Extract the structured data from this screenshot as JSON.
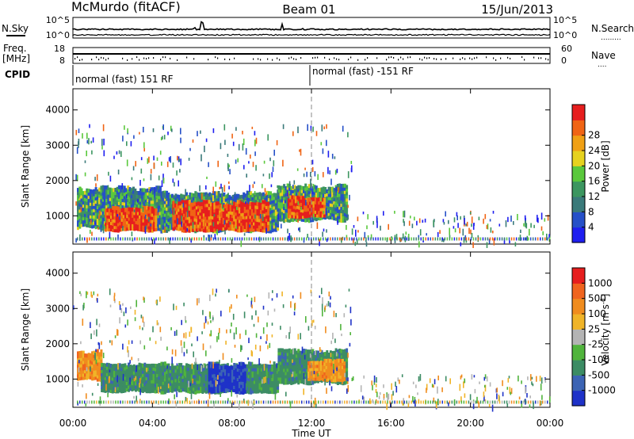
{
  "header": {
    "station": "McMurdo (fitACF)",
    "beam": "Beam 01",
    "date": "15/Jun/2013"
  },
  "meta_panel": {
    "left_labels": {
      "nsky": "N.Sky",
      "freq_line1": "Freq.",
      "freq_line2": "[MHz]",
      "cpid": "CPID"
    },
    "right_labels": {
      "nsearch": "N.Search",
      "nave": "Nave",
      "nsearch_dots": ".........",
      "nave_dots": "...."
    },
    "sky_axis": {
      "top": "10^5",
      "bottom": "10^0"
    },
    "search_axis": {
      "top": "10^5",
      "bottom": "10^0"
    },
    "freq_axis": {
      "top": "18",
      "bottom": "8"
    },
    "nave_axis": {
      "top": "60",
      "bottom": "0"
    },
    "cpid_segments": [
      {
        "label": "normal (fast) 151 RF",
        "start_hour": 0,
        "end_hour": 12
      },
      {
        "label": "normal (fast) -151 RF",
        "start_hour": 12,
        "end_hour": 24
      }
    ]
  },
  "time_axis": {
    "label": "Time UT",
    "ticks": [
      "00:00",
      "04:00",
      "08:00",
      "12:00",
      "16:00",
      "20:00",
      "00:00"
    ]
  },
  "chart_data": [
    {
      "type": "heatmap",
      "title": "",
      "xlabel": "Time UT",
      "ylabel": "Slant Range [km]",
      "xlim_hours": [
        0,
        24
      ],
      "ylim_km": [
        200,
        4600
      ],
      "yticks": [
        "1000",
        "2000",
        "3000",
        "4000"
      ],
      "colorbar": {
        "label": "Power [dB]",
        "ticks": [
          "4",
          "8",
          "12",
          "16",
          "20",
          "24",
          "28"
        ],
        "colors": [
          "#1e1ef0",
          "#2650c8",
          "#3a7a7a",
          "#3c9660",
          "#5ac83c",
          "#e6d21e",
          "#f0a014",
          "#f06414",
          "#e61e1e"
        ]
      },
      "regions": [
        {
          "t0": 0.2,
          "t1": 4.4,
          "r_lo": 560,
          "r_hi": 1780,
          "level": "mid"
        },
        {
          "t0": 1.6,
          "t1": 4.2,
          "r_lo": 520,
          "r_hi": 1200,
          "level": "high"
        },
        {
          "t0": 4.4,
          "t1": 10.3,
          "r_lo": 500,
          "r_hi": 1620,
          "level": "mid"
        },
        {
          "t0": 5.0,
          "t1": 9.8,
          "r_lo": 520,
          "r_hi": 1350,
          "level": "high"
        },
        {
          "t0": 10.3,
          "t1": 13.8,
          "r_lo": 800,
          "r_hi": 1820,
          "level": "mid"
        },
        {
          "t0": 10.8,
          "t1": 12.6,
          "r_lo": 900,
          "r_hi": 1500,
          "level": "high"
        }
      ]
    },
    {
      "type": "heatmap",
      "title": "",
      "xlabel": "Time UT",
      "ylabel": "Slant Range [km]",
      "xlim_hours": [
        0,
        24
      ],
      "ylim_km": [
        200,
        4600
      ],
      "yticks": [
        "1000",
        "2000",
        "3000",
        "4000"
      ],
      "colorbar": {
        "label": "Velocity [m s-1]",
        "ticks": [
          "1000",
          "500",
          "100",
          "25",
          "-25",
          "-100",
          "-500",
          "-1000"
        ],
        "colors": [
          "#1e32c8",
          "#3c64b4",
          "#3c8c64",
          "#50b43c",
          "#b4b4b4",
          "#f0b428",
          "#f08c1e",
          "#f0641e",
          "#e61e1e"
        ]
      },
      "regions": [
        {
          "t0": 0.2,
          "t1": 1.4,
          "r_lo": 900,
          "r_hi": 1760,
          "level": "orange"
        },
        {
          "t0": 1.4,
          "t1": 4.4,
          "r_lo": 580,
          "r_hi": 1400,
          "level": "green"
        },
        {
          "t0": 4.4,
          "t1": 10.3,
          "r_lo": 560,
          "r_hi": 1400,
          "level": "green"
        },
        {
          "t0": 6.8,
          "t1": 8.6,
          "r_lo": 560,
          "r_hi": 1400,
          "level": "blue"
        },
        {
          "t0": 10.3,
          "t1": 13.8,
          "r_lo": 820,
          "r_hi": 1800,
          "level": "green"
        },
        {
          "t0": 11.8,
          "t1": 13.6,
          "r_lo": 900,
          "r_hi": 1500,
          "level": "orange"
        }
      ]
    }
  ]
}
